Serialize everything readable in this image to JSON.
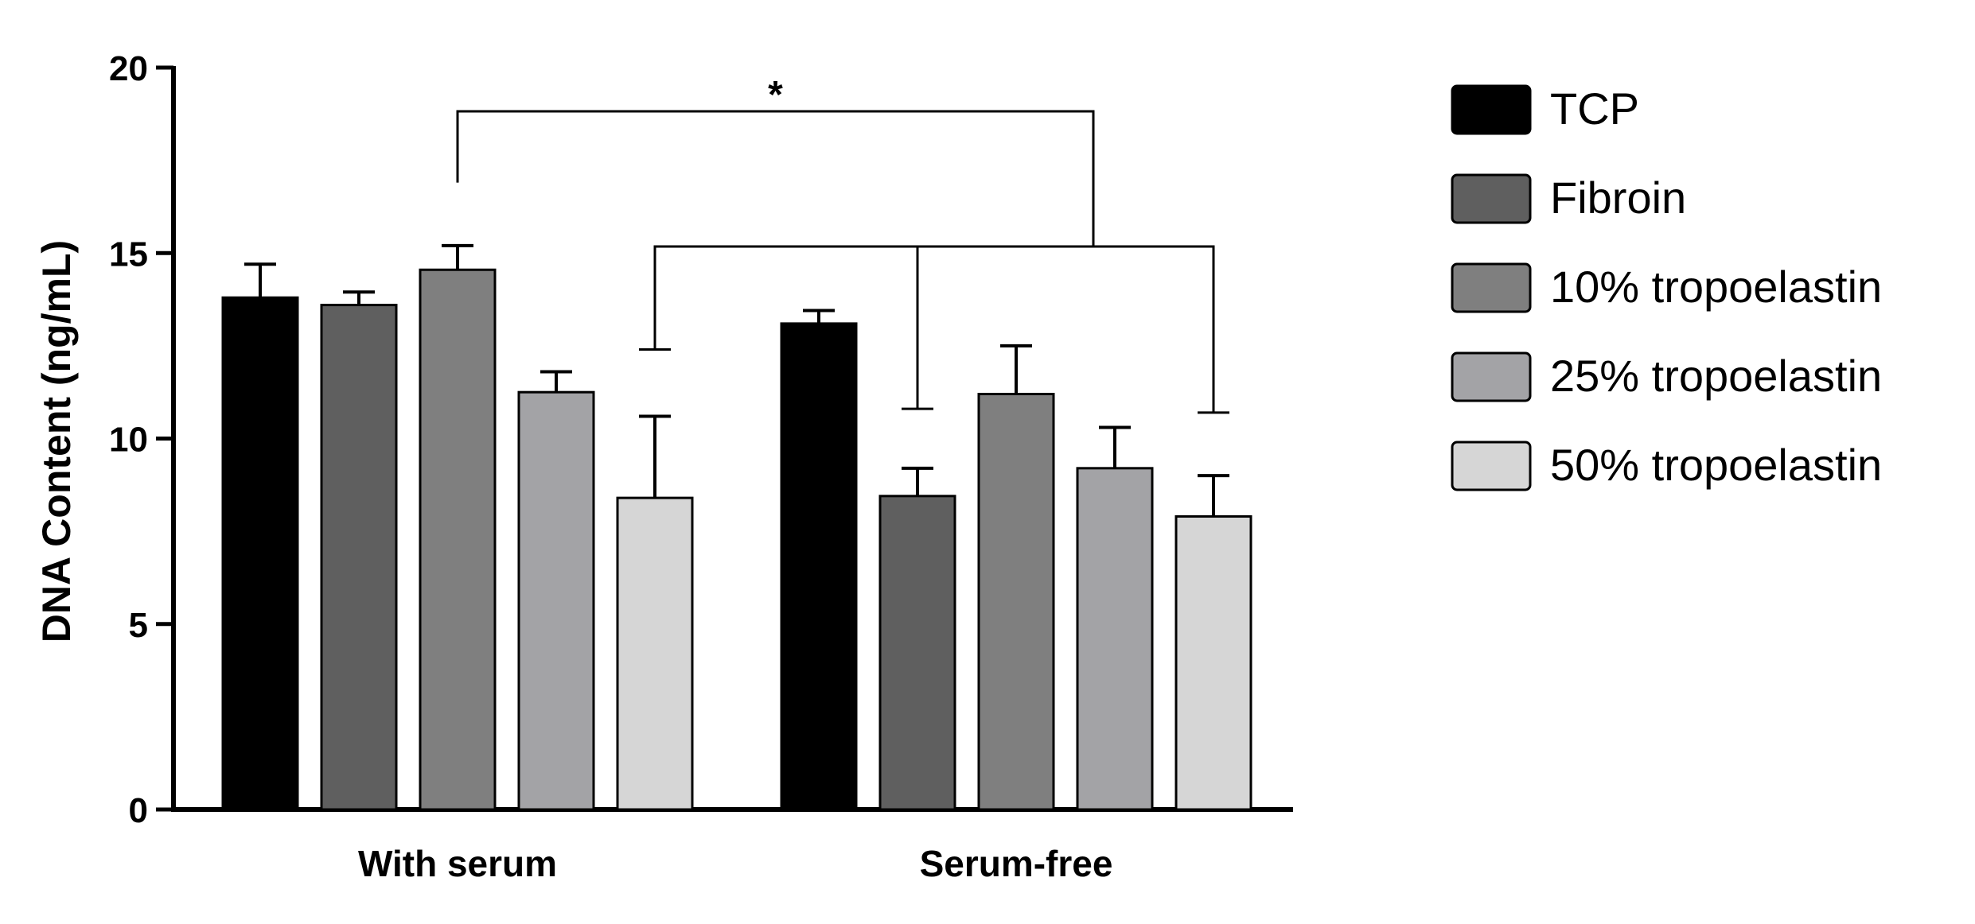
{
  "chart_data": {
    "type": "bar",
    "title": "",
    "xlabel": "",
    "ylabel": "DNA Content (ng/mL)",
    "ylim": [
      0,
      20
    ],
    "yticks": [
      0,
      5,
      10,
      15,
      20
    ],
    "grid": false,
    "legend_position": "right",
    "categories": [
      "With serum",
      "Serum-free"
    ],
    "series": [
      {
        "name": "TCP",
        "color": "#000000",
        "values": [
          13.8,
          13.1
        ],
        "errors": [
          0.9,
          0.35
        ]
      },
      {
        "name": "Fibroin",
        "color": "#5f5f5f",
        "values": [
          13.6,
          8.45
        ],
        "errors": [
          0.35,
          0.75
        ]
      },
      {
        "name": "10% tropoelastin",
        "color": "#7f7f7f",
        "values": [
          14.55,
          11.2
        ],
        "errors": [
          0.65,
          1.3
        ]
      },
      {
        "name": "25% tropoelastin",
        "color": "#a3a3a6",
        "values": [
          11.25,
          9.2
        ],
        "errors": [
          0.55,
          1.1
        ]
      },
      {
        "name": "50% tropoelastin",
        "color": "#d6d6d6",
        "values": [
          8.4,
          7.9
        ],
        "errors": [
          2.2,
          1.1
        ]
      }
    ],
    "annotations": [
      {
        "label": "*",
        "connects": [
          "With serum / 10% tropoelastin",
          "Serum-free / Fibroin",
          "Serum-free / 50% tropoelastin",
          "With serum / 50% tropoelastin"
        ]
      }
    ]
  }
}
